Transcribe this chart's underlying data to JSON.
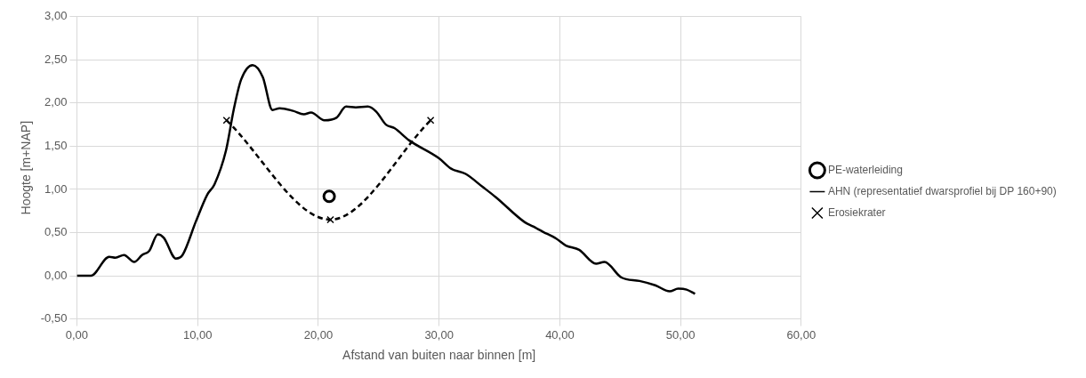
{
  "chart_data": {
    "type": "line",
    "xlabel": "Afstand van buiten naar binnen [m]",
    "ylabel": "Hoogte [m+NAP]",
    "xlim": [
      0,
      60
    ],
    "xticks": [
      {
        "value": 0,
        "label": "0,00"
      },
      {
        "value": 10,
        "label": "10,00"
      },
      {
        "value": 20,
        "label": "20,00"
      },
      {
        "value": 30,
        "label": "30,00"
      },
      {
        "value": 40,
        "label": "40,00"
      },
      {
        "value": 50,
        "label": "50,00"
      },
      {
        "value": 60,
        "label": "60,00"
      }
    ],
    "ylim": [
      -0.5,
      3
    ],
    "yticks": [
      {
        "value": -0.5,
        "label": "-0,50"
      },
      {
        "value": 0,
        "label": "0,00"
      },
      {
        "value": 0.5,
        "label": "0,50"
      },
      {
        "value": 1,
        "label": "1,00"
      },
      {
        "value": 1.5,
        "label": "1,50"
      },
      {
        "value": 2,
        "label": "2,00"
      },
      {
        "value": 2.5,
        "label": "2,50"
      },
      {
        "value": 3,
        "label": "3,00"
      }
    ],
    "grid": true,
    "legend": "right",
    "series": [
      {
        "name": "PE-waterleiding",
        "type": "scatter",
        "marker": "circle",
        "color": "#000000",
        "x": [
          20.9
        ],
        "values": [
          0.92
        ]
      },
      {
        "name": "AHN (representatief dwarsprofiel bij DP 160+90)",
        "type": "line",
        "marker": "none",
        "line_style": "solid",
        "color": "#000000",
        "x": [
          0,
          1.16,
          2.68,
          3.2,
          3.9,
          4.75,
          5.4,
          6.0,
          6.7,
          7.2,
          8.2,
          8.75,
          9.86,
          10.8,
          11.4,
          12.35,
          13.0,
          13.6,
          14.56,
          15.4,
          16.2,
          16.8,
          17.9,
          18.8,
          19.4,
          20.5,
          21.5,
          22.3,
          23.1,
          24.1,
          24.8,
          25.6,
          26.3,
          27.5,
          30.0,
          31.0,
          32.2,
          33.6,
          34.7,
          37.1,
          37.8,
          38.6,
          39.7,
          40.5,
          41.6,
          43.0,
          43.7,
          45.1,
          46.6,
          47.9,
          49.1,
          49.8,
          50.5,
          51.2
        ],
        "values": [
          0,
          0,
          0.22,
          0.21,
          0.24,
          0.16,
          0.24,
          0.29,
          0.48,
          0.44,
          0.2,
          0.24,
          0.63,
          0.94,
          1.06,
          1.45,
          1.93,
          2.27,
          2.44,
          2.3,
          1.92,
          1.94,
          1.91,
          1.87,
          1.89,
          1.8,
          1.83,
          1.96,
          1.95,
          1.96,
          1.9,
          1.75,
          1.71,
          1.57,
          1.36,
          1.24,
          1.18,
          1.03,
          0.91,
          0.62,
          0.57,
          0.51,
          0.43,
          0.35,
          0.3,
          0.14,
          0.16,
          -0.02,
          -0.06,
          -0.11,
          -0.18,
          -0.15,
          -0.16,
          -0.21
        ]
      },
      {
        "name": "Erosiekrater",
        "type": "line",
        "marker": "cross",
        "line_style": "dashed",
        "color": "#000000",
        "x": [
          12.4,
          21,
          29.3
        ],
        "values": [
          1.8,
          0.65,
          1.8
        ]
      }
    ]
  }
}
